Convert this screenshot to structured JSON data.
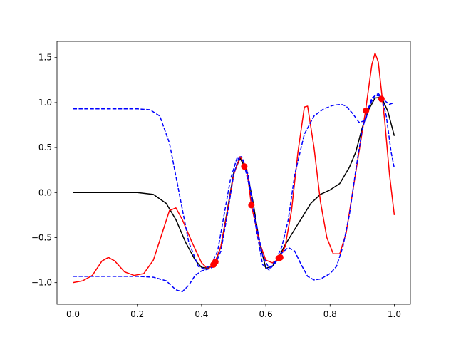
{
  "chart_data": {
    "type": "line",
    "title": "",
    "xlabel": "",
    "ylabel": "",
    "xlim": [
      -0.05,
      1.05
    ],
    "ylim": [
      -1.24,
      1.68
    ],
    "grid": false,
    "xticks": [
      0.0,
      0.2,
      0.4,
      0.6,
      0.8,
      1.0
    ],
    "xtick_labels": [
      "0.0",
      "0.2",
      "0.4",
      "0.6",
      "0.8",
      "1.0"
    ],
    "yticks": [
      -1.0,
      -0.5,
      0.0,
      0.5,
      1.0,
      1.5
    ],
    "ytick_labels": [
      "−1.0",
      "−0.5",
      "0.0",
      "0.5",
      "1.0",
      "1.5"
    ],
    "series": [
      {
        "role": "true-function",
        "color": "#000000",
        "style": "solid",
        "points": [
          [
            0.0,
            0.0
          ],
          [
            0.05,
            0.0
          ],
          [
            0.1,
            0.0
          ],
          [
            0.15,
            0.0
          ],
          [
            0.2,
            0.0
          ],
          [
            0.25,
            -0.02
          ],
          [
            0.29,
            -0.12
          ],
          [
            0.32,
            -0.3
          ],
          [
            0.35,
            -0.55
          ],
          [
            0.38,
            -0.75
          ],
          [
            0.4,
            -0.83
          ],
          [
            0.42,
            -0.84
          ],
          [
            0.44,
            -0.8
          ],
          [
            0.46,
            -0.6
          ],
          [
            0.48,
            -0.2
          ],
          [
            0.5,
            0.22
          ],
          [
            0.52,
            0.38
          ],
          [
            0.54,
            0.25
          ],
          [
            0.56,
            -0.1
          ],
          [
            0.58,
            -0.55
          ],
          [
            0.6,
            -0.84
          ],
          [
            0.62,
            -0.82
          ],
          [
            0.64,
            -0.72
          ],
          [
            0.66,
            -0.58
          ],
          [
            0.7,
            -0.35
          ],
          [
            0.74,
            -0.12
          ],
          [
            0.77,
            -0.02
          ],
          [
            0.8,
            0.03
          ],
          [
            0.83,
            0.1
          ],
          [
            0.86,
            0.28
          ],
          [
            0.88,
            0.45
          ],
          [
            0.9,
            0.72
          ],
          [
            0.92,
            0.92
          ],
          [
            0.94,
            1.05
          ],
          [
            0.96,
            1.06
          ],
          [
            0.98,
            0.9
          ],
          [
            1.0,
            0.63
          ]
        ]
      },
      {
        "role": "prediction",
        "color": "#ff0000",
        "style": "solid",
        "points": [
          [
            0.0,
            -1.0
          ],
          [
            0.03,
            -0.98
          ],
          [
            0.06,
            -0.92
          ],
          [
            0.09,
            -0.76
          ],
          [
            0.11,
            -0.72
          ],
          [
            0.13,
            -0.76
          ],
          [
            0.16,
            -0.88
          ],
          [
            0.19,
            -0.92
          ],
          [
            0.22,
            -0.9
          ],
          [
            0.25,
            -0.75
          ],
          [
            0.28,
            -0.42
          ],
          [
            0.3,
            -0.2
          ],
          [
            0.32,
            -0.17
          ],
          [
            0.34,
            -0.3
          ],
          [
            0.37,
            -0.55
          ],
          [
            0.4,
            -0.78
          ],
          [
            0.42,
            -0.85
          ],
          [
            0.44,
            -0.79
          ],
          [
            0.46,
            -0.6
          ],
          [
            0.48,
            -0.22
          ],
          [
            0.5,
            0.2
          ],
          [
            0.52,
            0.4
          ],
          [
            0.54,
            0.28
          ],
          [
            0.555,
            -0.14
          ],
          [
            0.58,
            -0.55
          ],
          [
            0.6,
            -0.75
          ],
          [
            0.62,
            -0.78
          ],
          [
            0.64,
            -0.74
          ],
          [
            0.66,
            -0.6
          ],
          [
            0.68,
            -0.2
          ],
          [
            0.7,
            0.45
          ],
          [
            0.72,
            0.95
          ],
          [
            0.73,
            0.96
          ],
          [
            0.75,
            0.5
          ],
          [
            0.77,
            -0.1
          ],
          [
            0.79,
            -0.5
          ],
          [
            0.81,
            -0.68
          ],
          [
            0.83,
            -0.68
          ],
          [
            0.85,
            -0.45
          ],
          [
            0.87,
            0.0
          ],
          [
            0.89,
            0.45
          ],
          [
            0.91,
            0.9
          ],
          [
            0.93,
            1.42
          ],
          [
            0.94,
            1.55
          ],
          [
            0.95,
            1.45
          ],
          [
            0.97,
            0.8
          ],
          [
            0.985,
            0.2
          ],
          [
            1.0,
            -0.25
          ]
        ]
      },
      {
        "role": "upper-bound",
        "color": "#0000ff",
        "style": "dashed",
        "points": [
          [
            0.0,
            0.93
          ],
          [
            0.1,
            0.93
          ],
          [
            0.2,
            0.93
          ],
          [
            0.24,
            0.92
          ],
          [
            0.27,
            0.85
          ],
          [
            0.3,
            0.55
          ],
          [
            0.33,
            0.0
          ],
          [
            0.36,
            -0.55
          ],
          [
            0.39,
            -0.82
          ],
          [
            0.41,
            -0.85
          ],
          [
            0.43,
            -0.8
          ],
          [
            0.45,
            -0.65
          ],
          [
            0.47,
            -0.25
          ],
          [
            0.49,
            0.15
          ],
          [
            0.51,
            0.38
          ],
          [
            0.525,
            0.4
          ],
          [
            0.545,
            0.2
          ],
          [
            0.565,
            -0.25
          ],
          [
            0.59,
            -0.7
          ],
          [
            0.61,
            -0.84
          ],
          [
            0.63,
            -0.76
          ],
          [
            0.65,
            -0.6
          ],
          [
            0.67,
            -0.3
          ],
          [
            0.69,
            0.2
          ],
          [
            0.72,
            0.65
          ],
          [
            0.75,
            0.85
          ],
          [
            0.78,
            0.93
          ],
          [
            0.81,
            0.97
          ],
          [
            0.835,
            0.98
          ],
          [
            0.85,
            0.96
          ],
          [
            0.87,
            0.88
          ],
          [
            0.89,
            0.78
          ],
          [
            0.91,
            0.8
          ],
          [
            0.93,
            1.05
          ],
          [
            0.95,
            1.1
          ],
          [
            0.97,
            1.02
          ],
          [
            0.985,
            0.98
          ],
          [
            1.0,
            1.0
          ]
        ]
      },
      {
        "role": "lower-bound",
        "color": "#0000ff",
        "style": "dashed",
        "points": [
          [
            0.0,
            -0.93
          ],
          [
            0.1,
            -0.93
          ],
          [
            0.2,
            -0.93
          ],
          [
            0.25,
            -0.94
          ],
          [
            0.29,
            -0.98
          ],
          [
            0.32,
            -1.08
          ],
          [
            0.34,
            -1.1
          ],
          [
            0.36,
            -1.03
          ],
          [
            0.38,
            -0.92
          ],
          [
            0.4,
            -0.87
          ],
          [
            0.42,
            -0.85
          ],
          [
            0.44,
            -0.82
          ],
          [
            0.46,
            -0.65
          ],
          [
            0.48,
            -0.25
          ],
          [
            0.5,
            0.2
          ],
          [
            0.515,
            0.38
          ],
          [
            0.53,
            0.35
          ],
          [
            0.55,
            0.05
          ],
          [
            0.57,
            -0.4
          ],
          [
            0.59,
            -0.8
          ],
          [
            0.61,
            -0.86
          ],
          [
            0.63,
            -0.78
          ],
          [
            0.65,
            -0.67
          ],
          [
            0.67,
            -0.61
          ],
          [
            0.69,
            -0.65
          ],
          [
            0.71,
            -0.8
          ],
          [
            0.73,
            -0.93
          ],
          [
            0.75,
            -0.97
          ],
          [
            0.77,
            -0.96
          ],
          [
            0.8,
            -0.9
          ],
          [
            0.82,
            -0.82
          ],
          [
            0.84,
            -0.6
          ],
          [
            0.86,
            -0.25
          ],
          [
            0.88,
            0.25
          ],
          [
            0.9,
            0.7
          ],
          [
            0.92,
            0.95
          ],
          [
            0.94,
            1.08
          ],
          [
            0.96,
            1.07
          ],
          [
            0.975,
            0.85
          ],
          [
            0.99,
            0.45
          ],
          [
            1.0,
            0.27
          ]
        ]
      }
    ],
    "observations": {
      "color": "#ff0000",
      "points": [
        [
          0.437,
          -0.8
        ],
        [
          0.443,
          -0.77
        ],
        [
          0.533,
          0.29
        ],
        [
          0.555,
          -0.14
        ],
        [
          0.64,
          -0.73
        ],
        [
          0.645,
          -0.72
        ],
        [
          0.912,
          0.91
        ],
        [
          0.96,
          1.04
        ]
      ]
    }
  }
}
